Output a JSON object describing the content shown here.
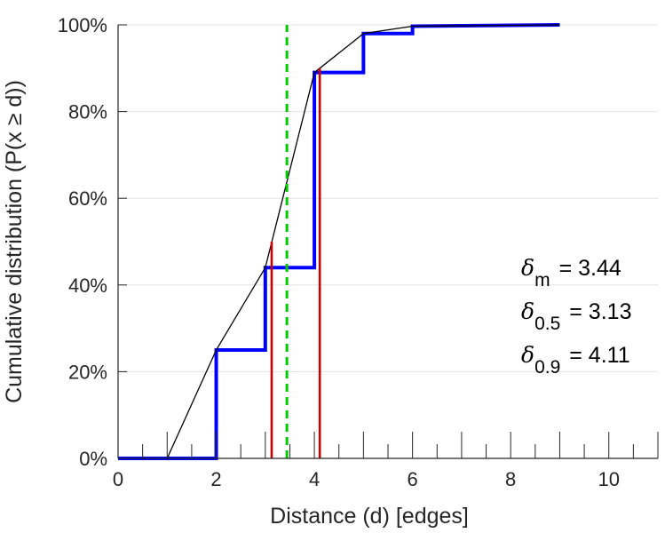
{
  "chart_data": {
    "type": "line",
    "xlabel": "Distance (d) [edges]",
    "ylabel": "Cumulative distribution (P(x ≥ d))",
    "xlim": [
      0,
      11
    ],
    "ylim": [
      0,
      100
    ],
    "xticks": [
      0,
      2,
      4,
      6,
      8,
      10
    ],
    "xtick_labels": [
      "0",
      "2",
      "4",
      "6",
      "8",
      "10"
    ],
    "yticks": [
      0,
      20,
      40,
      60,
      80,
      100
    ],
    "ytick_labels": [
      "0%",
      "20%",
      "40%",
      "60%",
      "80%",
      "100%"
    ],
    "grid": "horizontal",
    "series": [
      {
        "kind": "step",
        "color": "#0000ff",
        "points": [
          [
            0,
            0
          ],
          [
            2,
            0
          ],
          [
            2,
            25
          ],
          [
            3,
            25
          ],
          [
            3,
            44
          ],
          [
            4,
            44
          ],
          [
            4,
            89
          ],
          [
            5,
            89
          ],
          [
            5,
            98
          ],
          [
            6,
            98
          ],
          [
            6,
            99.7
          ],
          [
            7,
            99.8
          ],
          [
            8,
            99.9
          ],
          [
            9,
            100
          ]
        ]
      },
      {
        "kind": "line",
        "color": "#000000",
        "points": [
          [
            1,
            0
          ],
          [
            2,
            25
          ],
          [
            3,
            44
          ],
          [
            4,
            89
          ],
          [
            5,
            98
          ],
          [
            6,
            99.7
          ],
          [
            7,
            99.8
          ],
          [
            8,
            99.9
          ],
          [
            9,
            100
          ]
        ]
      }
    ],
    "markers": [
      {
        "kind": "vline",
        "x": 3.13,
        "y_top": 50,
        "color": "#cc0000"
      },
      {
        "kind": "vline",
        "x": 4.11,
        "y_top": 90,
        "color": "#cc0000"
      },
      {
        "kind": "vline-dashed",
        "x": 3.44,
        "y_top": 100,
        "color": "#00cc00"
      }
    ],
    "annotations": [
      {
        "symbol": "δ",
        "sub": "m",
        "text": "= 3.44"
      },
      {
        "symbol": "δ",
        "sub": "0.5",
        "text": "= 3.13"
      },
      {
        "symbol": "δ",
        "sub": "0.9",
        "text": "= 4.11"
      }
    ]
  }
}
